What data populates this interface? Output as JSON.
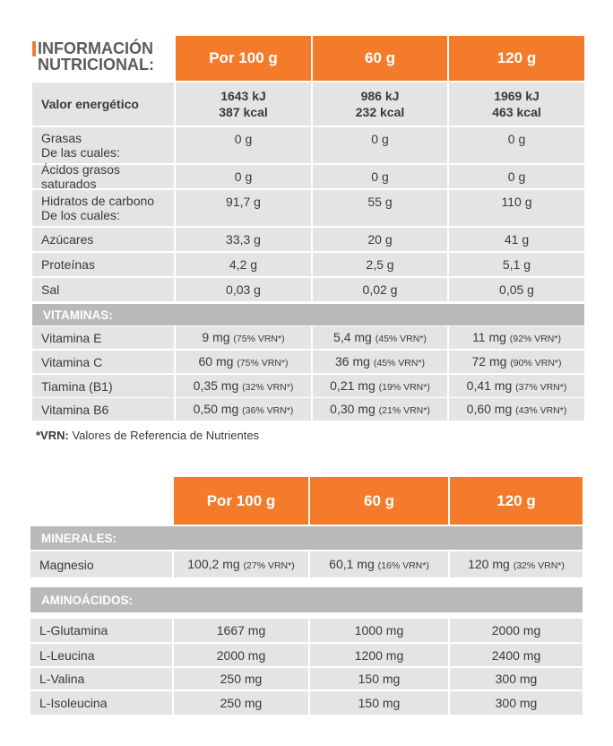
{
  "colors": {
    "accent": "#f47b2a",
    "cell": "#e4e4e4",
    "section": "#b9b9bb"
  },
  "title": {
    "line1": "INFORMACIÓN",
    "line2": "NUTRICIONAL:"
  },
  "columns": [
    "Por 100 g",
    "60 g",
    "120 g"
  ],
  "table1": {
    "energy": {
      "label": "Valor energético",
      "values": [
        [
          "1643 kJ",
          "387 kcal"
        ],
        [
          "986 kJ",
          "232 kcal"
        ],
        [
          "1969 kJ",
          "463 kcal"
        ]
      ]
    },
    "rows": [
      {
        "label": "Grasas",
        "sub": "De las cuales:",
        "values": [
          "0 g",
          "0 g",
          "0 g"
        ]
      },
      {
        "label": "Ácidos grasos saturados",
        "values": [
          "0 g",
          "0 g",
          "0 g"
        ]
      },
      {
        "label": "Hidratos de carbono",
        "sub": "De los cuales:",
        "values": [
          "91,7 g",
          "55 g",
          "110 g"
        ]
      },
      {
        "label": "Azúcares",
        "values": [
          "33,3 g",
          "20 g",
          "41 g"
        ]
      },
      {
        "label": "Proteínas",
        "values": [
          "4,2 g",
          "2,5 g",
          "5,1 g"
        ]
      },
      {
        "label": "Sal",
        "values": [
          "0,03 g",
          "0,02 g",
          "0,05 g"
        ]
      }
    ],
    "vitamins_header": "VITAMINAS:",
    "vitamins": [
      {
        "label": "Vitamina E",
        "values": [
          [
            "9 mg",
            "(75% VRN*)"
          ],
          [
            "5,4 mg",
            "(45% VRN*)"
          ],
          [
            "11 mg",
            "(92% VRN*)"
          ]
        ]
      },
      {
        "label": "Vitamina C",
        "values": [
          [
            "60 mg",
            "(75% VRN*)"
          ],
          [
            "36 mg",
            "(45% VRN*)"
          ],
          [
            "72 mg",
            "(90% VRN*)"
          ]
        ]
      },
      {
        "label": "Tiamina (B1)",
        "values": [
          [
            "0,35 mg",
            "(32% VRN*)"
          ],
          [
            "0,21 mg",
            "(19% VRN*)"
          ],
          [
            "0,41 mg",
            "(37% VRN*)"
          ]
        ]
      },
      {
        "label": "Vitamina B6",
        "values": [
          [
            "0,50 mg",
            "(36% VRN*)"
          ],
          [
            "0,30 mg",
            "(21% VRN*)"
          ],
          [
            "0,60 mg",
            "(43% VRN*)"
          ]
        ]
      }
    ]
  },
  "footnote": {
    "bold": "*VRN:",
    "text": " Valores de Referencia de Nutrientes"
  },
  "table2": {
    "minerals_header": "MINERALES:",
    "minerals": [
      {
        "label": "Magnesio",
        "values": [
          [
            "100,2 mg",
            "(27% VRN*)"
          ],
          [
            "60,1 mg",
            "(16% VRN*)"
          ],
          [
            "120 mg",
            "(32% VRN*)"
          ]
        ]
      }
    ],
    "amino_header": "AMINOÁCIDOS:",
    "amino": [
      {
        "label": "L-Glutamina",
        "values": [
          "1667 mg",
          "1000 mg",
          "2000 mg"
        ]
      },
      {
        "label": "L-Leucina",
        "values": [
          "2000 mg",
          "1200 mg",
          "2400 mg"
        ]
      },
      {
        "label": "L-Valina",
        "values": [
          "250 mg",
          "150 mg",
          "300 mg"
        ]
      },
      {
        "label": "L-Isoleucina",
        "values": [
          "250 mg",
          "150 mg",
          "300 mg"
        ]
      }
    ]
  }
}
